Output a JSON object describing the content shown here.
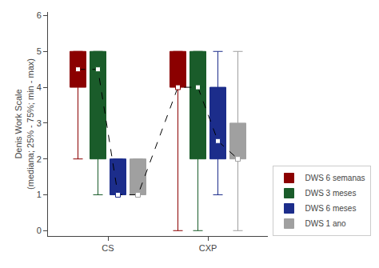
{
  "chart_data": {
    "type": "box",
    "categories": [
      "CS",
      "CXP"
    ],
    "series": [
      {
        "name": "DWS 6 semanas",
        "color": "#8B0000",
        "q1": [
          4.0,
          4.0
        ],
        "median": [
          4.5,
          4.0
        ],
        "q3": [
          5.0,
          5.0
        ],
        "min": [
          2.0,
          0.0
        ],
        "max": [
          5.0,
          5.0
        ]
      },
      {
        "name": "DWS 3 meses",
        "color": "#1A5C2A",
        "q1": [
          2.0,
          2.0
        ],
        "median": [
          4.5,
          4.0
        ],
        "q3": [
          5.0,
          5.0
        ],
        "min": [
          1.0,
          0.0
        ],
        "max": [
          5.0,
          5.0
        ]
      },
      {
        "name": "DWS 6 meses",
        "color": "#1C2D8B",
        "q1": [
          1.0,
          2.0
        ],
        "median": [
          1.0,
          2.5
        ],
        "q3": [
          2.0,
          4.0
        ],
        "min": [
          1.0,
          1.0
        ],
        "max": [
          2.0,
          5.0
        ]
      },
      {
        "name": "DWS 1 ano",
        "color": "#A0A0A0",
        "q1": [
          1.0,
          2.0
        ],
        "median": [
          1.0,
          2.0
        ],
        "q3": [
          2.0,
          3.0
        ],
        "min": [
          1.0,
          0.0
        ],
        "max": [
          2.0,
          5.0
        ]
      }
    ],
    "ylabel": "Denis Work Scale\n(mediana; 25% - 75%; min - max)",
    "ylim": [
      -0.15,
      6.1
    ],
    "yticks": [
      0,
      1,
      2,
      3,
      4,
      5,
      6
    ],
    "grid": false,
    "legend": "lower right",
    "marker": "square",
    "line_style": "dashed"
  }
}
